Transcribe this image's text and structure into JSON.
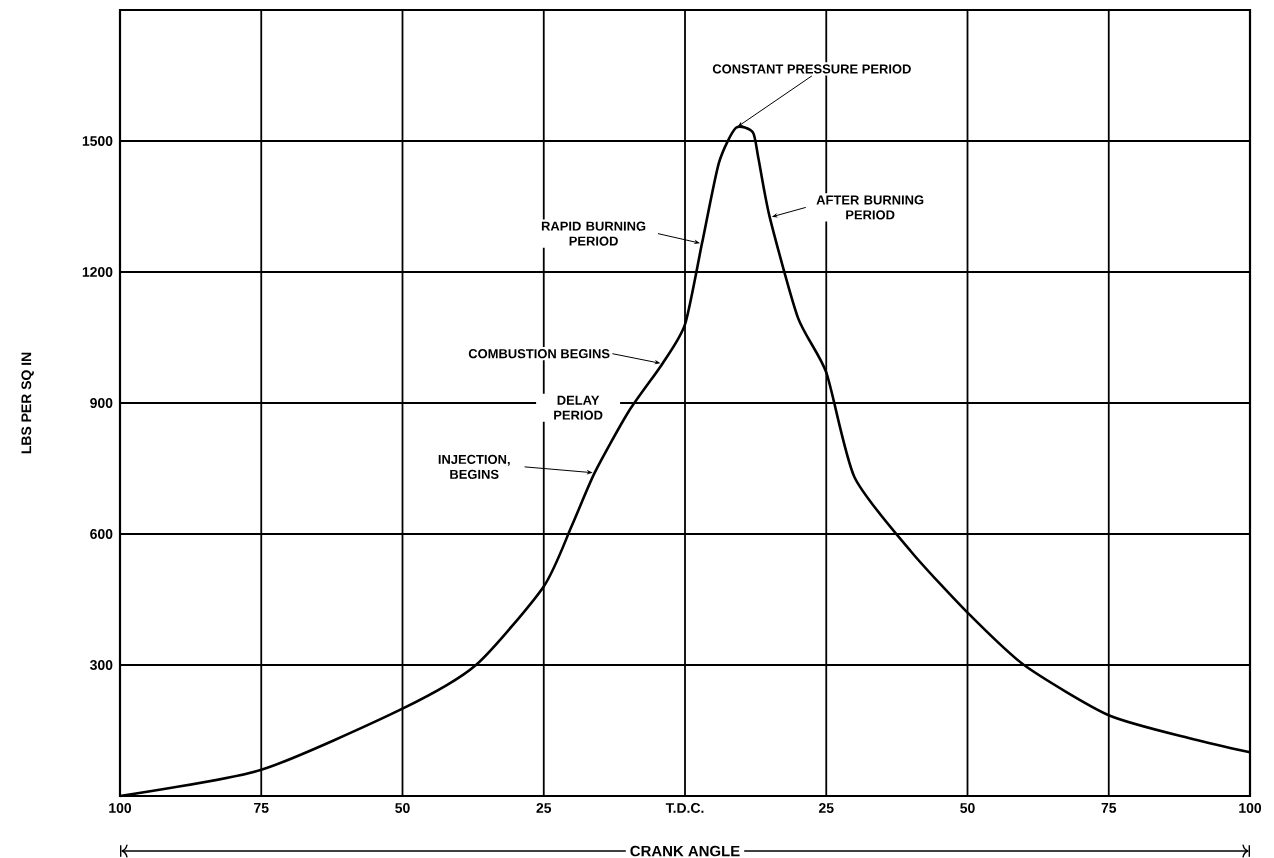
{
  "chart_data": {
    "type": "line",
    "xlabel": "CRANK ANGLE",
    "ylabel": "LBS PER SQ IN",
    "x": [
      -100,
      -75,
      -50,
      -37,
      -25,
      -20,
      -16,
      -10,
      -4,
      0,
      3,
      6,
      9,
      12,
      13,
      15,
      20,
      25,
      30,
      40,
      50,
      60,
      75,
      90,
      100
    ],
    "series": [
      {
        "color": "#000000",
        "values": [
          0,
          60,
          200,
          300,
          480,
          620,
          740,
          880,
          990,
          1080,
          1265,
          1450,
          1530,
          1520,
          1460,
          1325,
          1095,
          970,
          730,
          560,
          420,
          300,
          185,
          130,
          100
        ]
      }
    ],
    "xlim": [
      -100,
      100
    ],
    "ylim": [
      0,
      1800
    ],
    "xticks": [
      {
        "value": -100,
        "label": "100"
      },
      {
        "value": -75,
        "label": "75"
      },
      {
        "value": -50,
        "label": "50"
      },
      {
        "value": -25,
        "label": "25"
      },
      {
        "value": 0,
        "label": "T.D.C."
      },
      {
        "value": 25,
        "label": "25"
      },
      {
        "value": 50,
        "label": "50"
      },
      {
        "value": 75,
        "label": "75"
      },
      {
        "value": 100,
        "label": "100"
      }
    ],
    "yticks": [
      300,
      600,
      900,
      1200,
      1500
    ],
    "grid": true,
    "marker": "none",
    "line_style": "solid",
    "annotations": [
      {
        "text": "CONSTANT PRESSURE PERIOD",
        "x": 9,
        "y": 1530
      },
      {
        "text": "RAPID BURNING PERIOD",
        "x": 3,
        "y": 1265
      },
      {
        "text": "AFTER BURNING PERIOD",
        "x": 15,
        "y": 1325
      },
      {
        "text": "COMBUSTION BEGINS",
        "x": -4,
        "y": 990
      },
      {
        "text": "DELAY PERIOD",
        "x": -10,
        "y": 880
      },
      {
        "text": "INJECTION, BEGINS",
        "x": -16,
        "y": 740
      }
    ]
  }
}
